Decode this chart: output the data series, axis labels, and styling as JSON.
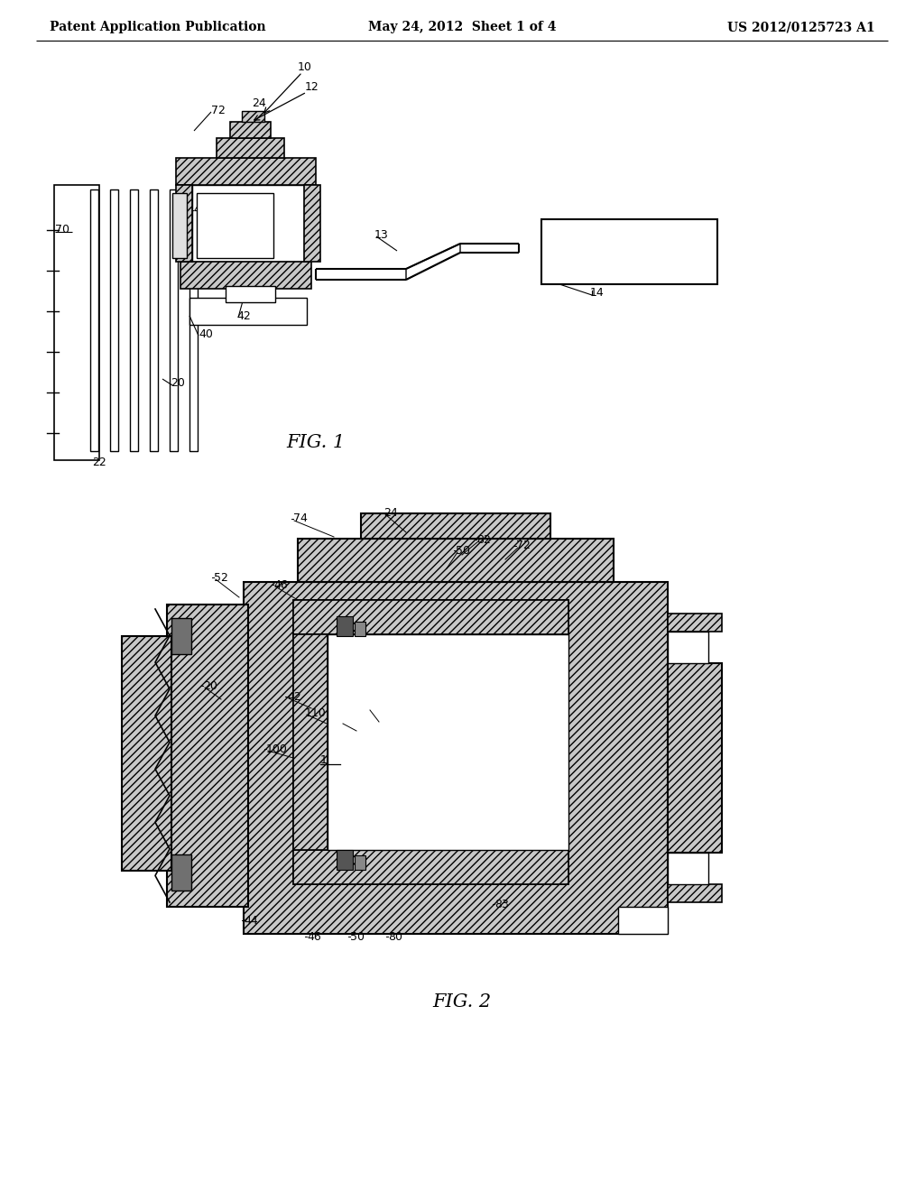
{
  "bg_color": "#ffffff",
  "header_left": "Patent Application Publication",
  "header_center": "May 24, 2012  Sheet 1 of 4",
  "header_right": "US 2012/0125723 A1",
  "fig1_caption": "FIG. 1",
  "fig2_caption": "FIG. 2",
  "hatch": "////",
  "lc": "#000000",
  "hatch_fc": "#c8c8c8"
}
